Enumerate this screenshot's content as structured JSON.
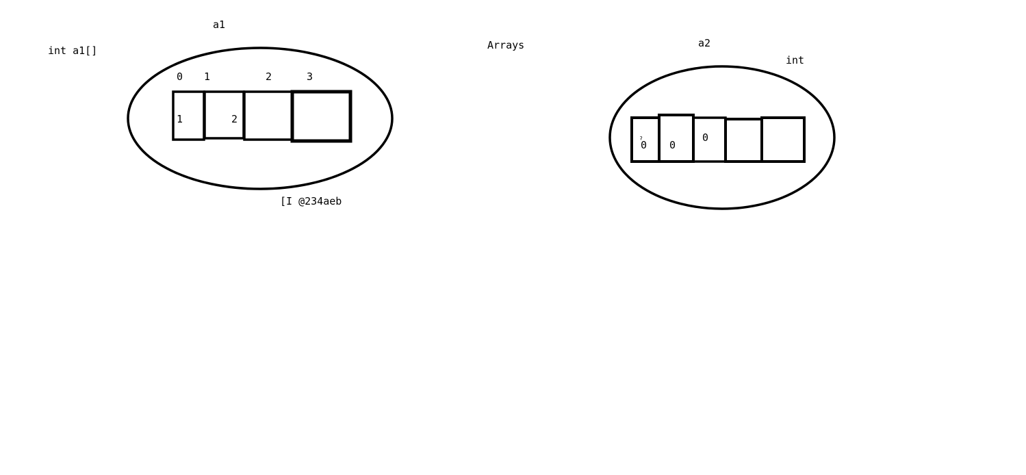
{
  "labels": {
    "declaration": "int a1[]",
    "a1_name": "a1",
    "a1_address": "[I @234aeb",
    "title": "Arrays",
    "a2_name": "a2",
    "a2_type": "int"
  },
  "array_a1": {
    "indices": [
      "0",
      "1",
      "2",
      "3"
    ],
    "values": [
      "1",
      "2",
      "",
      ""
    ]
  },
  "array_a2": {
    "values": [
      "0",
      "0",
      "0",
      "",
      ""
    ],
    "scribble": "ˀ"
  }
}
